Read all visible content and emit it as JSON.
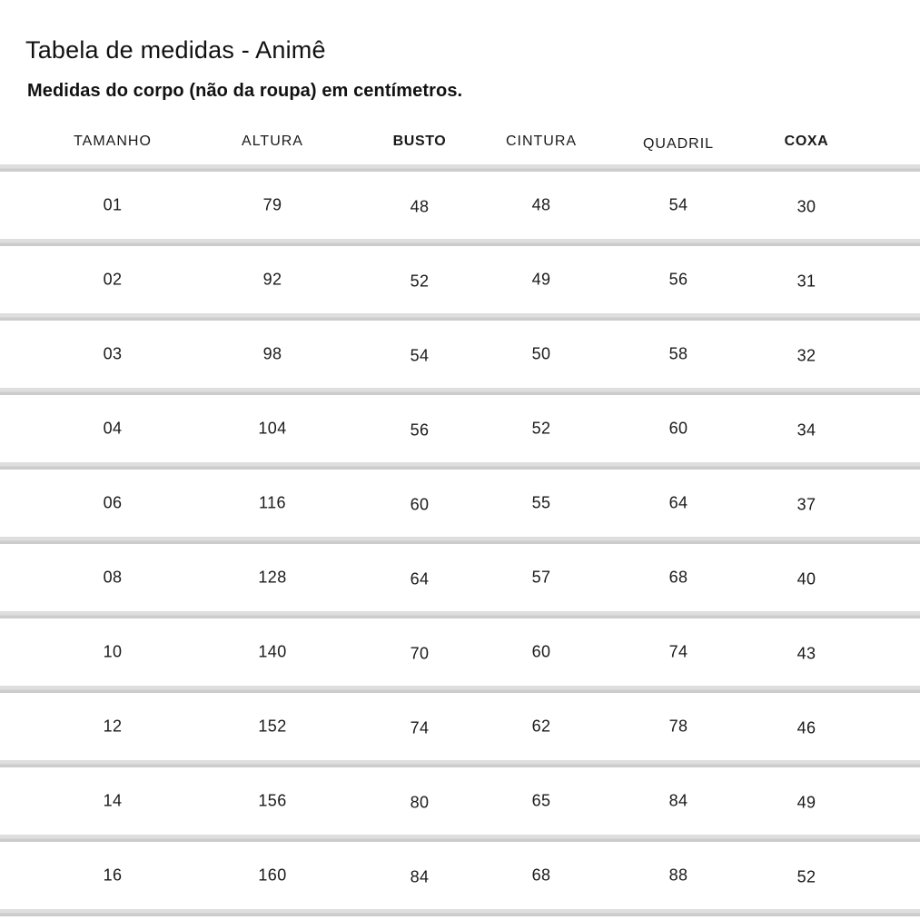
{
  "page": {
    "title": "Tabela de medidas - Animê",
    "subtitle": "Medidas do corpo (não da roupa) em centímetros."
  },
  "table": {
    "columns": [
      {
        "label": "TAMANHO",
        "bold": false
      },
      {
        "label": "ALTURA",
        "bold": false
      },
      {
        "label": "BUSTO",
        "bold": true
      },
      {
        "label": "CINTURA",
        "bold": false
      },
      {
        "label": "QUADRIL",
        "bold": false
      },
      {
        "label": "COXA",
        "bold": true
      }
    ],
    "rows": [
      [
        "01",
        "79",
        "48",
        "48",
        "54",
        "30"
      ],
      [
        "02",
        "92",
        "52",
        "49",
        "56",
        "31"
      ],
      [
        "03",
        "98",
        "54",
        "50",
        "58",
        "32"
      ],
      [
        "04",
        "104",
        "56",
        "52",
        "60",
        "34"
      ],
      [
        "06",
        "116",
        "60",
        "55",
        "64",
        "37"
      ],
      [
        "08",
        "128",
        "64",
        "57",
        "68",
        "40"
      ],
      [
        "10",
        "140",
        "70",
        "60",
        "74",
        "43"
      ],
      [
        "12",
        "152",
        "74",
        "62",
        "78",
        "46"
      ],
      [
        "14",
        "156",
        "80",
        "65",
        "84",
        "49"
      ],
      [
        "16",
        "160",
        "84",
        "68",
        "88",
        "52"
      ]
    ],
    "units_note": "cm"
  },
  "colors": {
    "background": "#ffffff",
    "text": "#1a1a1a",
    "divider_light": "#dedede",
    "divider_dark": "#cccccc"
  }
}
